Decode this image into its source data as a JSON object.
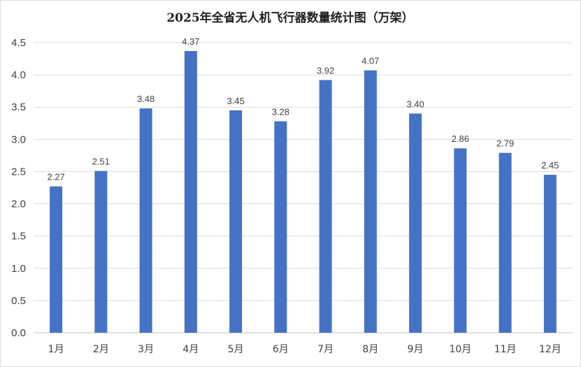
{
  "chart_data": {
    "type": "bar",
    "title": "2025年全省无人机飞行器数量统计图（万架）",
    "xlabel": "",
    "ylabel": "",
    "categories": [
      "1月",
      "2月",
      "3月",
      "4月",
      "5月",
      "6月",
      "7月",
      "8月",
      "9月",
      "10月",
      "11月",
      "12月"
    ],
    "values": [
      2.27,
      2.51,
      3.48,
      4.37,
      3.45,
      3.28,
      3.92,
      4.07,
      3.4,
      2.86,
      2.79,
      2.45
    ],
    "value_labels": [
      "2.27",
      "2.51",
      "3.48",
      "4.37",
      "3.45",
      "3.28",
      "3.92",
      "4.07",
      "3.40",
      "2.86",
      "2.79",
      "2.45"
    ],
    "ylim": [
      0,
      4.5
    ],
    "y_ticks": [
      "0.0",
      "0.5",
      "1.0",
      "1.5",
      "2.0",
      "2.5",
      "3.0",
      "3.5",
      "4.0",
      "4.5"
    ],
    "grid": true,
    "legend": "none",
    "bar_color": "#4472c4"
  }
}
